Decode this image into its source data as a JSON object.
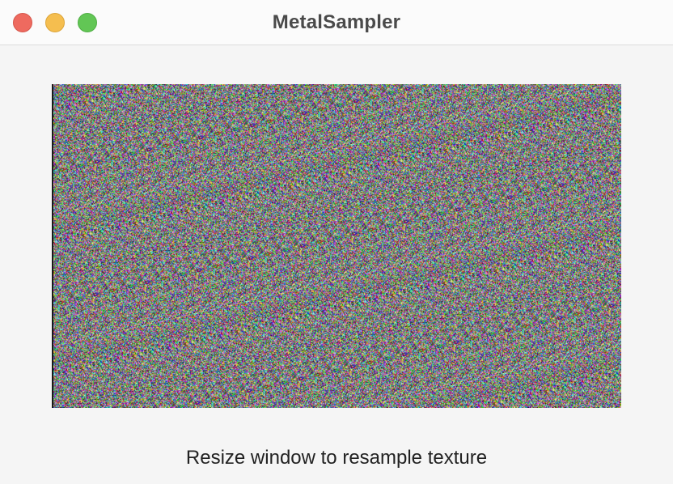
{
  "window": {
    "title": "MetalSampler",
    "controls": {
      "close": "close-button",
      "minimize": "minimize-button",
      "zoom": "zoom-button"
    }
  },
  "texture": {
    "description_icon": "random-noise-texture"
  },
  "footer": {
    "caption": "Resize window to resample texture"
  },
  "colors": {
    "background": "#f5f5f5",
    "titlebar": "#fbfbfb",
    "close": "#ee6a5f",
    "minimize": "#f5be4f",
    "zoom": "#62c655",
    "title_text": "#4a4a4a",
    "caption_text": "#222222"
  }
}
